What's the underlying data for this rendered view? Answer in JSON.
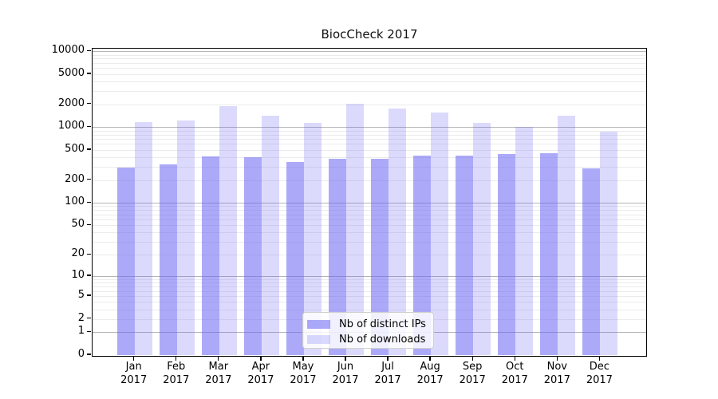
{
  "title": "BiocCheck 2017",
  "chart_data": {
    "type": "bar",
    "title": "BiocCheck 2017",
    "xlabel": "",
    "ylabel": "",
    "y_scale": "log1p",
    "ylim": [
      0,
      10000
    ],
    "grid": true,
    "legend_position": "inside-bottom-center",
    "y_ticks": [
      0,
      1,
      2,
      5,
      10,
      20,
      50,
      100,
      200,
      500,
      1000,
      2000,
      5000,
      10000
    ],
    "categories": [
      "Jan",
      "Feb",
      "Mar",
      "Apr",
      "May",
      "Jun",
      "Jul",
      "Aug",
      "Sep",
      "Oct",
      "Nov",
      "Dec"
    ],
    "x_year": "2017",
    "series": [
      {
        "name": "Nb of distinct IPs",
        "color": "rgba(104,100,242,0.55)",
        "values": [
          294,
          323,
          414,
          403,
          344,
          381,
          382,
          421,
          419,
          439,
          453,
          284
        ]
      },
      {
        "name": "Nb of downloads",
        "color": "rgba(104,100,242,0.24)",
        "values": [
          1170,
          1225,
          1880,
          1417,
          1140,
          2034,
          1751,
          1575,
          1148,
          1009,
          1417,
          881
        ]
      }
    ]
  }
}
